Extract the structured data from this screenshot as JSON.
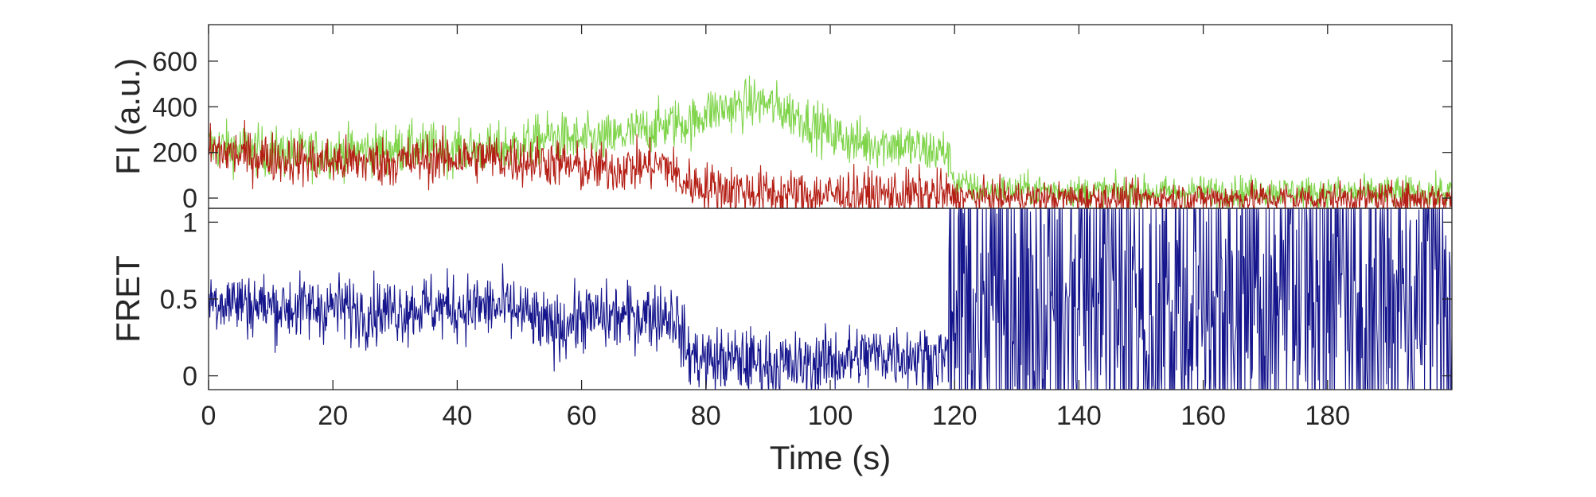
{
  "chart_data": [
    {
      "type": "line",
      "ylabel": "FI (a.u.)",
      "xlim": [
        0,
        200
      ],
      "ylim": [
        -45,
        760
      ],
      "yticks": [
        "0",
        "200",
        "400",
        "600"
      ],
      "ytick_values": [
        0,
        200,
        400,
        600
      ],
      "grid": false,
      "series": [
        {
          "color": "#7fd44a",
          "x": [
            0,
            5,
            10,
            15,
            20,
            25,
            30,
            35,
            40,
            45,
            50,
            55,
            60,
            65,
            70,
            75,
            78,
            80,
            85,
            88,
            90,
            95,
            100,
            105,
            110,
            115,
            119,
            120,
            125,
            130,
            140,
            150,
            160,
            170,
            180,
            190,
            200
          ],
          "y": [
            230,
            220,
            200,
            195,
            200,
            210,
            215,
            220,
            215,
            210,
            230,
            270,
            250,
            260,
            300,
            330,
            330,
            380,
            400,
            420,
            410,
            360,
            280,
            240,
            240,
            210,
            200,
            70,
            30,
            40,
            30,
            25,
            30,
            30,
            25,
            25,
            25
          ]
        },
        {
          "color": "#b41e14",
          "x": [
            0,
            5,
            10,
            15,
            20,
            25,
            30,
            35,
            40,
            45,
            50,
            55,
            60,
            65,
            70,
            74,
            76,
            80,
            85,
            90,
            95,
            100,
            105,
            110,
            115,
            119,
            120,
            125,
            130,
            140,
            150,
            160,
            170,
            180,
            190,
            200
          ],
          "y": [
            210,
            190,
            180,
            165,
            160,
            160,
            160,
            170,
            175,
            180,
            165,
            160,
            130,
            130,
            140,
            145,
            70,
            50,
            35,
            20,
            15,
            15,
            15,
            15,
            15,
            15,
            5,
            5,
            0,
            0,
            0,
            0,
            0,
            0,
            0,
            0
          ]
        }
      ]
    },
    {
      "type": "line",
      "ylabel": "FRET",
      "xlabel": "Time (s)",
      "xlim": [
        0,
        200
      ],
      "ylim": [
        -0.09,
        1.09
      ],
      "xticks": [
        "0",
        "20",
        "40",
        "60",
        "80",
        "100",
        "120",
        "140",
        "160",
        "180"
      ],
      "xtick_values": [
        0,
        20,
        40,
        60,
        80,
        100,
        120,
        140,
        160,
        180
      ],
      "yticks": [
        "0",
        "0.5",
        "1"
      ],
      "ytick_values": [
        0,
        0.5,
        1
      ],
      "grid": false,
      "series": [
        {
          "color": "#14148c",
          "x": [
            0,
            5,
            10,
            15,
            20,
            25,
            30,
            35,
            40,
            45,
            50,
            55,
            60,
            65,
            70,
            75,
            77,
            80,
            85,
            90,
            95,
            100,
            105,
            110,
            115,
            119,
            120,
            130,
            140,
            150,
            160,
            170,
            180,
            190,
            200
          ],
          "y": [
            0.5,
            0.48,
            0.45,
            0.44,
            0.45,
            0.42,
            0.43,
            0.45,
            0.44,
            0.45,
            0.42,
            0.3,
            0.38,
            0.38,
            0.4,
            0.4,
            0.15,
            0.1,
            0.1,
            0.08,
            0.06,
            0.1,
            0.12,
            0.15,
            0.12,
            0.12,
            0.5,
            0.5,
            0.5,
            0.5,
            0.5,
            0.5,
            0.5,
            0.5,
            0.5
          ]
        }
      ]
    }
  ]
}
